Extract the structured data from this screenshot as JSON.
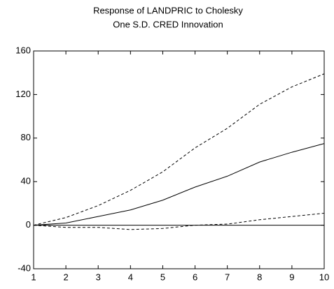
{
  "chart_data": {
    "type": "line",
    "title": [
      "Response of LANDPRIC to Cholesky",
      "One S.D. CRED Innovation"
    ],
    "x": [
      1,
      2,
      3,
      4,
      5,
      6,
      7,
      8,
      9,
      10
    ],
    "series": [
      {
        "color": "#000000",
        "style": "solid",
        "values": [
          0,
          2,
          8,
          14,
          23,
          35,
          45,
          58,
          67,
          75
        ]
      },
      {
        "color": "#000000",
        "style": "dashed",
        "values": [
          0,
          7,
          18,
          32,
          49,
          71,
          89,
          111,
          127,
          139
        ]
      },
      {
        "color": "#000000",
        "style": "dashed",
        "values": [
          0,
          -2,
          -2,
          -4,
          -3,
          0,
          1,
          5,
          8,
          11
        ]
      }
    ],
    "hline": 0,
    "xlim": [
      1,
      10
    ],
    "xticks": [
      1,
      2,
      3,
      4,
      5,
      6,
      7,
      8,
      9,
      10
    ],
    "ylim": [
      -40,
      160
    ],
    "yticks": [
      -40,
      0,
      40,
      80,
      120,
      160
    ],
    "grid": false
  }
}
